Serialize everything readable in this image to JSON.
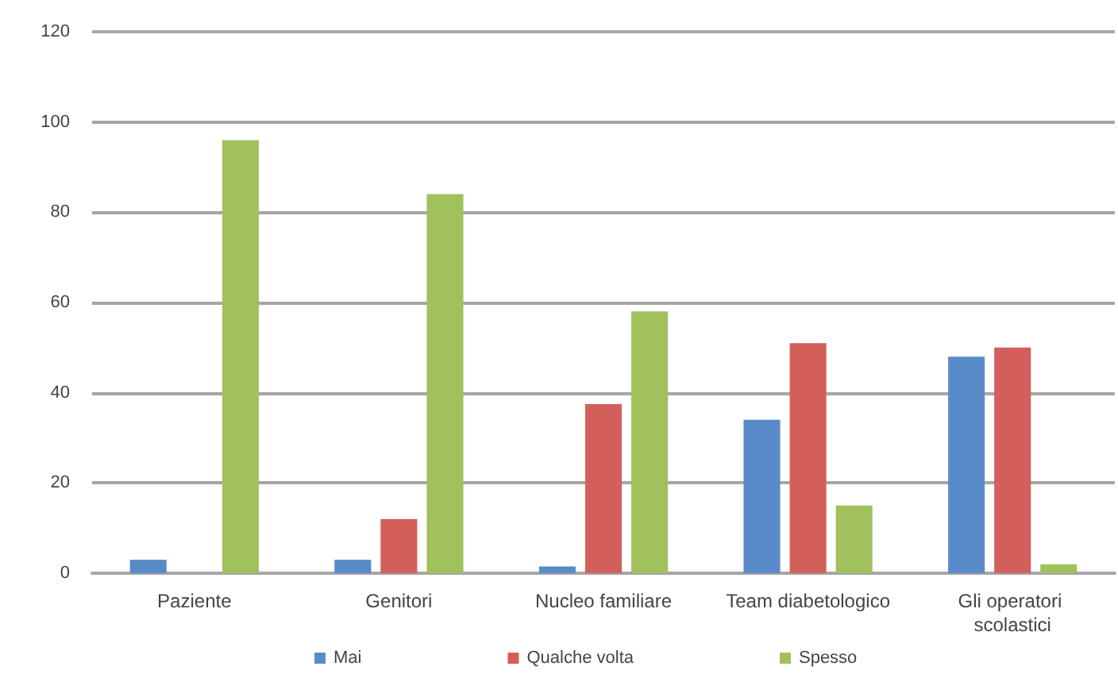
{
  "chart_data": {
    "type": "bar",
    "categories": [
      "Paziente",
      "Genitori",
      "Nucleo familiare",
      "Team diabetologico",
      "Gli operatori scolastici"
    ],
    "series": [
      {
        "name": "Mai",
        "color": "#5a8bc9",
        "values": [
          3,
          3,
          1.5,
          34,
          48
        ]
      },
      {
        "name": "Qualche volta",
        "color": "#d25f5a",
        "values": [
          0,
          12,
          37.5,
          51,
          50
        ]
      },
      {
        "name": "Spesso",
        "color": "#a0c15c",
        "values": [
          96,
          84,
          58,
          15,
          2
        ]
      }
    ],
    "ylim": [
      0,
      120
    ],
    "yticks": [
      0,
      20,
      40,
      60,
      80,
      100,
      120
    ],
    "grid": "y",
    "legend": "bottom"
  }
}
